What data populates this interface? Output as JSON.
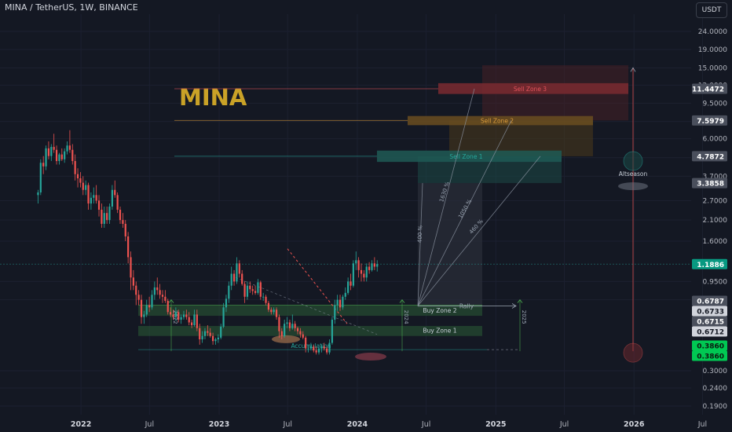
{
  "header": {
    "title": "MINA / TetherUS, 1W, BINANCE",
    "currency_button": "USDT"
  },
  "colors": {
    "background": "#141823",
    "up": "#26a69a",
    "down": "#ef5350",
    "logo": "#c9a227",
    "price_badge": "#089981",
    "accumulation_badge": "#00c853"
  },
  "chart_data": {
    "type": "candlestick",
    "symbol_logo": "MINA",
    "y_scale": "log",
    "ylim": [
      0.17,
      30
    ],
    "xlim": [
      "2021-06",
      "2026-06"
    ],
    "x_tick_labels": [
      "2022",
      "Jul",
      "2023",
      "Jul",
      "2024",
      "Jul",
      "2025",
      "Jul",
      "2026",
      "Jul"
    ],
    "y_tick_labels": [
      {
        "value": 24,
        "label": "24.0000"
      },
      {
        "value": 19,
        "label": "19.0000"
      },
      {
        "value": 15,
        "label": "15.0000"
      },
      {
        "value": 12,
        "label": "12.0000"
      },
      {
        "value": 9.5,
        "label": "9.5000"
      },
      {
        "value": 7.5,
        "label": "7.5000"
      },
      {
        "value": 6.0,
        "label": "6.0000"
      },
      {
        "value": 4.7,
        "label": "4.7000"
      },
      {
        "value": 3.7,
        "label": "3.7000"
      },
      {
        "value": 2.7,
        "label": "2.7000"
      },
      {
        "value": 2.1,
        "label": "2.1000"
      },
      {
        "value": 1.6,
        "label": "1.6000"
      },
      {
        "value": 0.95,
        "label": "0.9500"
      },
      {
        "value": 0.75,
        "label": "0.7500"
      },
      {
        "value": 0.3,
        "label": "0.3000"
      },
      {
        "value": 0.24,
        "label": "0.2400"
      },
      {
        "value": 0.19,
        "label": "0.1900"
      }
    ],
    "price_badges": [
      {
        "value": 11.4472,
        "label": "11.4472",
        "style": "gray"
      },
      {
        "value": 7.5979,
        "label": "7.5979",
        "style": "gray"
      },
      {
        "value": 4.7872,
        "label": "4.7872",
        "style": "gray"
      },
      {
        "value": 3.3858,
        "label": "3.3858",
        "style": "gray"
      },
      {
        "value": 1.1886,
        "label": "1.1886",
        "style": "green"
      },
      {
        "value": 0.6787,
        "label": "0.6787",
        "style": "gray"
      },
      {
        "value": 0.6733,
        "label": "0.6733",
        "style": "light"
      },
      {
        "value": 0.6715,
        "label": "0.6715",
        "style": "gray"
      },
      {
        "value": 0.6712,
        "label": "0.6712",
        "style": "light"
      },
      {
        "value": 0.386,
        "label": "0.3860",
        "style": "bright"
      },
      {
        "value": 0.386,
        "label": "0.3860",
        "style": "bright"
      }
    ],
    "zones": [
      {
        "label": "Sell Zone 3",
        "lines": [
          11.4472
        ],
        "color": "#e0525a"
      },
      {
        "label": "Sell Zone 2",
        "lines": [
          7.5979
        ],
        "color": "#d99a3a"
      },
      {
        "label": "Sell Zone 1",
        "lines": [
          4.7872
        ],
        "color": "#26a69a"
      },
      {
        "label": "Buy Zone 2",
        "lines": [
          0.6787
        ],
        "color": "#4caf50"
      },
      {
        "label": "Buy Zone 1",
        "lines": [
          0.6715
        ],
        "color": "#4caf50"
      }
    ],
    "annotations": [
      {
        "label": "Accumulation",
        "value": 0.386
      },
      {
        "label": "Rally",
        "value": 0.6787
      },
      {
        "label": "Altseason",
        "date": "2026-01"
      },
      {
        "label": "400 %"
      },
      {
        "label": "1630 %"
      },
      {
        "label": "1050 %"
      },
      {
        "label": "460 %"
      },
      {
        "label": "2022"
      },
      {
        "label": "2024"
      },
      {
        "label": "2025"
      }
    ],
    "ohlc": [
      [
        "2021-09-06",
        2.9,
        3.1,
        2.6,
        3.0
      ],
      [
        "2021-09-13",
        3.0,
        4.6,
        2.9,
        4.4
      ],
      [
        "2021-09-20",
        4.4,
        4.8,
        3.8,
        4.2
      ],
      [
        "2021-09-27",
        4.2,
        5.5,
        4.0,
        5.3
      ],
      [
        "2021-10-04",
        5.3,
        5.8,
        4.6,
        4.8
      ],
      [
        "2021-10-11",
        4.8,
        5.6,
        4.5,
        5.4
      ],
      [
        "2021-10-18",
        5.4,
        6.4,
        5.0,
        5.2
      ],
      [
        "2021-10-25",
        5.2,
        5.5,
        4.3,
        4.5
      ],
      [
        "2021-11-01",
        4.5,
        5.0,
        4.3,
        4.9
      ],
      [
        "2021-11-08",
        4.9,
        5.3,
        4.5,
        4.6
      ],
      [
        "2021-11-15",
        4.6,
        5.3,
        4.4,
        5.1
      ],
      [
        "2021-11-22",
        5.1,
        5.8,
        4.9,
        5.5
      ],
      [
        "2021-11-29",
        5.5,
        6.7,
        5.0,
        5.2
      ],
      [
        "2021-12-06",
        5.2,
        5.6,
        4.3,
        4.5
      ],
      [
        "2021-12-13",
        4.5,
        4.9,
        3.5,
        3.8
      ],
      [
        "2021-12-20",
        3.8,
        4.1,
        3.2,
        3.6
      ],
      [
        "2021-12-27",
        3.6,
        3.9,
        3.2,
        3.4
      ],
      [
        "2022-01-03",
        3.4,
        3.7,
        2.9,
        3.1
      ],
      [
        "2022-01-10",
        3.1,
        3.5,
        2.9,
        3.3
      ],
      [
        "2022-01-17",
        3.3,
        3.4,
        2.4,
        2.6
      ],
      [
        "2022-01-24",
        2.6,
        3.0,
        2.4,
        2.8
      ],
      [
        "2022-01-31",
        2.8,
        3.2,
        2.6,
        2.9
      ],
      [
        "2022-02-07",
        2.9,
        3.3,
        2.6,
        2.7
      ],
      [
        "2022-02-14",
        2.7,
        2.9,
        2.2,
        2.4
      ],
      [
        "2022-02-21",
        2.4,
        2.6,
        1.9,
        2.0
      ],
      [
        "2022-02-28",
        2.0,
        2.5,
        1.9,
        2.3
      ],
      [
        "2022-03-07",
        2.3,
        2.5,
        2.0,
        2.1
      ],
      [
        "2022-03-14",
        2.1,
        2.6,
        2.0,
        2.5
      ],
      [
        "2022-03-21",
        2.5,
        3.3,
        2.4,
        3.1
      ],
      [
        "2022-03-28",
        3.1,
        3.5,
        2.8,
        2.9
      ],
      [
        "2022-04-04",
        2.9,
        3.0,
        2.3,
        2.4
      ],
      [
        "2022-04-11",
        2.4,
        2.5,
        2.0,
        2.1
      ],
      [
        "2022-04-18",
        2.1,
        2.3,
        1.9,
        2.0
      ],
      [
        "2022-04-25",
        2.0,
        2.1,
        1.6,
        1.7
      ],
      [
        "2022-05-02",
        1.7,
        1.8,
        1.2,
        1.3
      ],
      [
        "2022-05-09",
        1.3,
        1.4,
        0.85,
        1.0
      ],
      [
        "2022-05-16",
        1.0,
        1.1,
        0.85,
        0.9
      ],
      [
        "2022-05-23",
        0.9,
        0.95,
        0.7,
        0.8
      ],
      [
        "2022-05-30",
        0.8,
        0.85,
        0.7,
        0.75
      ],
      [
        "2022-06-06",
        0.75,
        0.8,
        0.55,
        0.6
      ],
      [
        "2022-06-13",
        0.6,
        0.65,
        0.55,
        0.62
      ],
      [
        "2022-06-20",
        0.62,
        0.75,
        0.6,
        0.7
      ],
      [
        "2022-06-27",
        0.7,
        0.78,
        0.64,
        0.68
      ],
      [
        "2022-07-04",
        0.68,
        0.85,
        0.66,
        0.8
      ],
      [
        "2022-07-11",
        0.8,
        0.95,
        0.75,
        0.88
      ],
      [
        "2022-07-18",
        0.88,
        1.0,
        0.8,
        0.85
      ],
      [
        "2022-07-25",
        0.85,
        0.92,
        0.76,
        0.8
      ],
      [
        "2022-08-01",
        0.8,
        0.85,
        0.72,
        0.78
      ],
      [
        "2022-08-08",
        0.78,
        0.85,
        0.72,
        0.74
      ],
      [
        "2022-08-15",
        0.74,
        0.76,
        0.62,
        0.64
      ],
      [
        "2022-08-22",
        0.64,
        0.68,
        0.6,
        0.62
      ],
      [
        "2022-08-29",
        0.62,
        0.66,
        0.58,
        0.6
      ],
      [
        "2022-09-05",
        0.6,
        0.68,
        0.57,
        0.64
      ],
      [
        "2022-09-12",
        0.64,
        0.66,
        0.56,
        0.58
      ],
      [
        "2022-09-19",
        0.58,
        0.62,
        0.55,
        0.6
      ],
      [
        "2022-09-26",
        0.6,
        0.65,
        0.58,
        0.62
      ],
      [
        "2022-10-03",
        0.62,
        0.66,
        0.58,
        0.6
      ],
      [
        "2022-10-10",
        0.6,
        0.64,
        0.54,
        0.56
      ],
      [
        "2022-10-17",
        0.56,
        0.58,
        0.52,
        0.54
      ],
      [
        "2022-10-24",
        0.54,
        0.66,
        0.53,
        0.62
      ],
      [
        "2022-10-31",
        0.62,
        0.66,
        0.5,
        0.52
      ],
      [
        "2022-11-07",
        0.52,
        0.55,
        0.42,
        0.45
      ],
      [
        "2022-11-14",
        0.45,
        0.5,
        0.43,
        0.47
      ],
      [
        "2022-11-21",
        0.47,
        0.52,
        0.45,
        0.5
      ],
      [
        "2022-11-28",
        0.5,
        0.54,
        0.47,
        0.49
      ],
      [
        "2022-12-05",
        0.49,
        0.52,
        0.46,
        0.47
      ],
      [
        "2022-12-12",
        0.47,
        0.49,
        0.42,
        0.44
      ],
      [
        "2022-12-19",
        0.44,
        0.46,
        0.42,
        0.45
      ],
      [
        "2022-12-26",
        0.45,
        0.48,
        0.43,
        0.46
      ],
      [
        "2023-01-02",
        0.46,
        0.55,
        0.45,
        0.53
      ],
      [
        "2023-01-09",
        0.53,
        0.72,
        0.52,
        0.68
      ],
      [
        "2023-01-16",
        0.68,
        0.8,
        0.64,
        0.76
      ],
      [
        "2023-01-23",
        0.76,
        0.95,
        0.72,
        0.9
      ],
      [
        "2023-01-30",
        0.9,
        1.15,
        0.85,
        1.05
      ],
      [
        "2023-02-06",
        1.05,
        1.1,
        0.9,
        0.95
      ],
      [
        "2023-02-13",
        0.95,
        1.3,
        0.92,
        1.2
      ],
      [
        "2023-02-20",
        1.2,
        1.25,
        1.0,
        1.05
      ],
      [
        "2023-02-27",
        1.05,
        1.1,
        0.9,
        0.92
      ],
      [
        "2023-03-06",
        0.92,
        0.95,
        0.72,
        0.78
      ],
      [
        "2023-03-13",
        0.78,
        0.95,
        0.75,
        0.9
      ],
      [
        "2023-03-20",
        0.9,
        0.95,
        0.82,
        0.86
      ],
      [
        "2023-03-27",
        0.86,
        0.9,
        0.8,
        0.84
      ],
      [
        "2023-04-03",
        0.84,
        0.9,
        0.8,
        0.82
      ],
      [
        "2023-04-10",
        0.82,
        0.98,
        0.8,
        0.94
      ],
      [
        "2023-04-17",
        0.94,
        0.96,
        0.75,
        0.78
      ],
      [
        "2023-04-24",
        0.78,
        0.82,
        0.74,
        0.78
      ],
      [
        "2023-05-01",
        0.78,
        0.8,
        0.7,
        0.72
      ],
      [
        "2023-05-08",
        0.72,
        0.74,
        0.64,
        0.66
      ],
      [
        "2023-05-15",
        0.66,
        0.68,
        0.62,
        0.64
      ],
      [
        "2023-05-22",
        0.64,
        0.68,
        0.62,
        0.66
      ],
      [
        "2023-05-29",
        0.66,
        0.68,
        0.58,
        0.6
      ],
      [
        "2023-06-05",
        0.6,
        0.62,
        0.46,
        0.5
      ],
      [
        "2023-06-12",
        0.5,
        0.52,
        0.45,
        0.47
      ],
      [
        "2023-06-19",
        0.47,
        0.58,
        0.46,
        0.55
      ],
      [
        "2023-06-26",
        0.55,
        0.6,
        0.52,
        0.56
      ],
      [
        "2023-07-03",
        0.56,
        0.58,
        0.5,
        0.52
      ],
      [
        "2023-07-10",
        0.52,
        0.62,
        0.51,
        0.55
      ],
      [
        "2023-07-17",
        0.55,
        0.57,
        0.5,
        0.52
      ],
      [
        "2023-07-24",
        0.52,
        0.53,
        0.48,
        0.5
      ],
      [
        "2023-07-31",
        0.5,
        0.52,
        0.46,
        0.48
      ],
      [
        "2023-08-07",
        0.48,
        0.5,
        0.45,
        0.46
      ],
      [
        "2023-08-14",
        0.46,
        0.47,
        0.38,
        0.4
      ],
      [
        "2023-08-21",
        0.4,
        0.42,
        0.38,
        0.4
      ],
      [
        "2023-08-28",
        0.4,
        0.43,
        0.39,
        0.41
      ],
      [
        "2023-09-04",
        0.41,
        0.42,
        0.38,
        0.39
      ],
      [
        "2023-09-11",
        0.39,
        0.41,
        0.37,
        0.38
      ],
      [
        "2023-09-18",
        0.38,
        0.41,
        0.37,
        0.4
      ],
      [
        "2023-09-25",
        0.4,
        0.42,
        0.38,
        0.41
      ],
      [
        "2023-10-02",
        0.41,
        0.43,
        0.39,
        0.4
      ],
      [
        "2023-10-09",
        0.4,
        0.41,
        0.37,
        0.38
      ],
      [
        "2023-10-16",
        0.38,
        0.45,
        0.37,
        0.43
      ],
      [
        "2023-10-23",
        0.43,
        0.6,
        0.42,
        0.58
      ],
      [
        "2023-10-30",
        0.58,
        0.75,
        0.55,
        0.7
      ],
      [
        "2023-11-06",
        0.7,
        0.8,
        0.65,
        0.75
      ],
      [
        "2023-11-13",
        0.75,
        0.8,
        0.65,
        0.68
      ],
      [
        "2023-11-20",
        0.68,
        0.8,
        0.66,
        0.78
      ],
      [
        "2023-11-27",
        0.78,
        0.88,
        0.75,
        0.82
      ],
      [
        "2023-12-04",
        0.82,
        1.0,
        0.8,
        0.95
      ],
      [
        "2023-12-11",
        0.95,
        1.05,
        0.85,
        0.9
      ],
      [
        "2023-12-18",
        0.9,
        1.25,
        0.88,
        1.2
      ],
      [
        "2023-12-25",
        1.2,
        1.4,
        1.1,
        1.25
      ],
      [
        "2024-01-01",
        1.25,
        1.3,
        1.0,
        1.1
      ],
      [
        "2024-01-08",
        1.1,
        1.2,
        0.95,
        1.05
      ],
      [
        "2024-01-15",
        1.05,
        1.1,
        0.95,
        1.0
      ],
      [
        "2024-01-22",
        1.0,
        1.2,
        0.95,
        1.15
      ],
      [
        "2024-01-29",
        1.15,
        1.22,
        1.05,
        1.1
      ],
      [
        "2024-02-05",
        1.1,
        1.25,
        1.08,
        1.2
      ],
      [
        "2024-02-12",
        1.2,
        1.3,
        1.1,
        1.15
      ],
      [
        "2024-02-19",
        1.15,
        1.25,
        1.08,
        1.19
      ]
    ]
  }
}
